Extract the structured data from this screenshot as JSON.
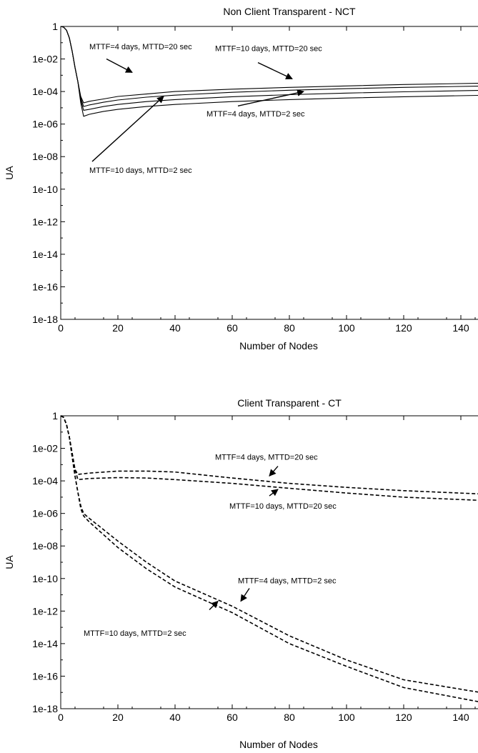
{
  "chart_data": [
    {
      "type": "line",
      "title": "Non Client Transparent - NCT",
      "xlabel": "Number of Nodes",
      "ylabel": "UA",
      "xlim": [
        0,
        150
      ],
      "ylim": [
        1e-18,
        1
      ],
      "yscale": "log",
      "line_style": "solid",
      "x_ticks": [
        {
          "value": 0,
          "label": "0"
        },
        {
          "value": 20,
          "label": "20"
        },
        {
          "value": 40,
          "label": "40"
        },
        {
          "value": 60,
          "label": "60"
        },
        {
          "value": 80,
          "label": "80"
        },
        {
          "value": 100,
          "label": "100"
        },
        {
          "value": 120,
          "label": "120"
        },
        {
          "value": 140,
          "label": "140"
        }
      ],
      "y_ticks": [
        {
          "value": 1,
          "label": "1"
        },
        {
          "value": 0.01,
          "label": "1e-02"
        },
        {
          "value": 0.0001,
          "label": "1e-04"
        },
        {
          "value": 1e-06,
          "label": "1e-06"
        },
        {
          "value": 1e-08,
          "label": "1e-08"
        },
        {
          "value": 1e-10,
          "label": "1e-10"
        },
        {
          "value": 1e-12,
          "label": "1e-12"
        },
        {
          "value": 1e-14,
          "label": "1e-14"
        },
        {
          "value": 1e-16,
          "label": "1e-16"
        },
        {
          "value": 1e-18,
          "label": "1e-18"
        }
      ],
      "series": [
        {
          "x": [
            0,
            1,
            2,
            3,
            4,
            5,
            6,
            7,
            8,
            10,
            15,
            20,
            30,
            40,
            60,
            80,
            100,
            120,
            150
          ],
          "values": [
            1,
            0.9,
            0.6,
            0.2,
            0.03,
            0.003,
            0.0004,
            5e-05,
            2e-05,
            2.5e-05,
            3.5e-05,
            5e-05,
            7e-05,
            0.0001,
            0.00014,
            0.00018,
            0.00022,
            0.00027,
            0.00033
          ]
        },
        {
          "x": [
            0,
            1,
            2,
            3,
            4,
            5,
            6,
            7,
            8,
            10,
            15,
            20,
            30,
            40,
            60,
            80,
            100,
            120,
            150
          ],
          "values": [
            1,
            0.9,
            0.6,
            0.2,
            0.03,
            0.003,
            0.0004,
            4e-05,
            1.2e-05,
            1.5e-05,
            2.2e-05,
            3e-05,
            4.5e-05,
            6e-05,
            9e-05,
            0.00012,
            0.00015,
            0.00018,
            0.00022
          ]
        },
        {
          "x": [
            0,
            1,
            2,
            3,
            4,
            5,
            6,
            7,
            8,
            10,
            15,
            20,
            30,
            40,
            60,
            80,
            100,
            120,
            150
          ],
          "values": [
            1,
            0.9,
            0.6,
            0.2,
            0.03,
            0.003,
            0.0004,
            3e-05,
            7e-06,
            8e-06,
            1.2e-05,
            1.6e-05,
            2.4e-05,
            3.2e-05,
            4.8e-05,
            6.4e-05,
            8e-05,
            9.6e-05,
            0.00012
          ]
        },
        {
          "x": [
            0,
            1,
            2,
            3,
            4,
            5,
            6,
            7,
            8,
            10,
            15,
            20,
            30,
            40,
            60,
            80,
            100,
            120,
            150
          ],
          "values": [
            1,
            0.9,
            0.6,
            0.2,
            0.03,
            0.003,
            0.0004,
            2e-05,
            3e-06,
            4e-06,
            6e-06,
            8e-06,
            1.2e-05,
            1.6e-05,
            2.4e-05,
            3.2e-05,
            4e-05,
            4.8e-05,
            6e-05
          ]
        }
      ],
      "annotations": [
        {
          "text": "MTTF=4 days,  MTTD=20 sec",
          "label_x": 10,
          "label_y": 0.04,
          "arrow_from_x": 16,
          "arrow_from_y": 0.01,
          "arrow_to_x": 25,
          "arrow_to_y": 0.0015
        },
        {
          "text": "MTTF=10 days,  MTTD=20 sec",
          "label_x": 54,
          "label_y": 0.03,
          "arrow_from_x": 69,
          "arrow_from_y": 0.006,
          "arrow_to_x": 81,
          "arrow_to_y": 0.0006
        },
        {
          "text": "MTTF=4 days,  MTTD=2  sec",
          "label_x": 51,
          "label_y": 3e-06,
          "arrow_from_x": 62,
          "arrow_from_y": 1.3e-05,
          "arrow_to_x": 85,
          "arrow_to_y": 0.0001
        },
        {
          "text": "MTTF=10 days,  MTTD=2  sec",
          "label_x": 10,
          "label_y": 1e-09,
          "arrow_from_x": 11,
          "arrow_from_y": 5e-09,
          "arrow_to_x": 36,
          "arrow_to_y": 5e-05
        }
      ]
    },
    {
      "type": "line",
      "title": "Client Transparent - CT",
      "xlabel": "Number of Nodes",
      "ylabel": "UA",
      "xlim": [
        0,
        150
      ],
      "ylim": [
        1e-18,
        1
      ],
      "yscale": "log",
      "line_style": "dashed",
      "x_ticks": [
        {
          "value": 0,
          "label": "0"
        },
        {
          "value": 20,
          "label": "20"
        },
        {
          "value": 40,
          "label": "40"
        },
        {
          "value": 60,
          "label": "60"
        },
        {
          "value": 80,
          "label": "80"
        },
        {
          "value": 100,
          "label": "100"
        },
        {
          "value": 120,
          "label": "120"
        },
        {
          "value": 140,
          "label": "140"
        }
      ],
      "y_ticks": [
        {
          "value": 1,
          "label": "1"
        },
        {
          "value": 0.01,
          "label": "1e-02"
        },
        {
          "value": 0.0001,
          "label": "1e-04"
        },
        {
          "value": 1e-06,
          "label": "1e-06"
        },
        {
          "value": 1e-08,
          "label": "1e-08"
        },
        {
          "value": 1e-10,
          "label": "1e-10"
        },
        {
          "value": 1e-12,
          "label": "1e-12"
        },
        {
          "value": 1e-14,
          "label": "1e-14"
        },
        {
          "value": 1e-16,
          "label": "1e-16"
        },
        {
          "value": 1e-18,
          "label": "1e-18"
        }
      ],
      "series": [
        {
          "x": [
            0,
            1,
            2,
            3,
            4,
            5,
            6,
            10,
            20,
            30,
            40,
            60,
            80,
            100,
            120,
            150
          ],
          "values": [
            1,
            0.8,
            0.3,
            0.05,
            0.005,
            0.0005,
            0.00025,
            0.0003,
            0.0004,
            0.0004,
            0.00035,
            0.00015,
            7e-05,
            4e-05,
            2.5e-05,
            1.5e-05
          ]
        },
        {
          "x": [
            0,
            1,
            2,
            3,
            4,
            5,
            6,
            10,
            20,
            30,
            40,
            60,
            80,
            100,
            120,
            150
          ],
          "values": [
            1,
            0.8,
            0.3,
            0.05,
            0.005,
            0.0005,
            0.00012,
            0.00014,
            0.00016,
            0.00015,
            0.00012,
            7e-05,
            3.5e-05,
            1.8e-05,
            1e-05,
            6e-06
          ]
        },
        {
          "x": [
            0,
            1,
            2,
            3,
            4,
            5,
            6,
            7,
            8,
            10,
            20,
            30,
            40,
            60,
            80,
            100,
            120,
            150
          ],
          "values": [
            1,
            0.8,
            0.3,
            0.05,
            0.003,
            0.0002,
            2e-05,
            3e-06,
            1e-06,
            5e-07,
            2e-08,
            1e-09,
            7e-11,
            2e-12,
            3e-14,
            1e-15,
            6e-17,
            8e-18
          ]
        },
        {
          "x": [
            0,
            1,
            2,
            3,
            4,
            5,
            6,
            7,
            8,
            10,
            20,
            30,
            40,
            60,
            80,
            100,
            120,
            150
          ],
          "values": [
            1,
            0.8,
            0.3,
            0.05,
            0.003,
            0.0002,
            2e-05,
            2e-06,
            7e-07,
            3e-07,
            8e-09,
            4e-10,
            3e-11,
            8e-13,
            1e-14,
            4e-16,
            2e-17,
            2e-18
          ]
        }
      ],
      "annotations": [
        {
          "text": "MTTF=4 days,  MTTD=20 sec",
          "label_x": 54,
          "label_y": 0.002,
          "arrow_from_x": 76,
          "arrow_from_y": 0.0008,
          "arrow_to_x": 73,
          "arrow_to_y": 0.0002
        },
        {
          "text": "MTTF=10 days,  MTTD=20 sec",
          "label_x": 59,
          "label_y": 2e-06,
          "arrow_from_x": 73,
          "arrow_from_y": 1.2e-05,
          "arrow_to_x": 76,
          "arrow_to_y": 3e-05
        },
        {
          "text": "MTTF=4 days,  MTTD=2 sec",
          "label_x": 62,
          "label_y": 5e-11,
          "arrow_from_x": 66,
          "arrow_from_y": 2.5e-11,
          "arrow_to_x": 63,
          "arrow_to_y": 4e-12
        },
        {
          "text": "MTTF=10 days,  MTTD=2 sec",
          "label_x": 8,
          "label_y": 3e-14,
          "arrow_from_x": 52,
          "arrow_from_y": 1.2e-12,
          "arrow_to_x": 55,
          "arrow_to_y": 4e-12
        }
      ]
    }
  ]
}
